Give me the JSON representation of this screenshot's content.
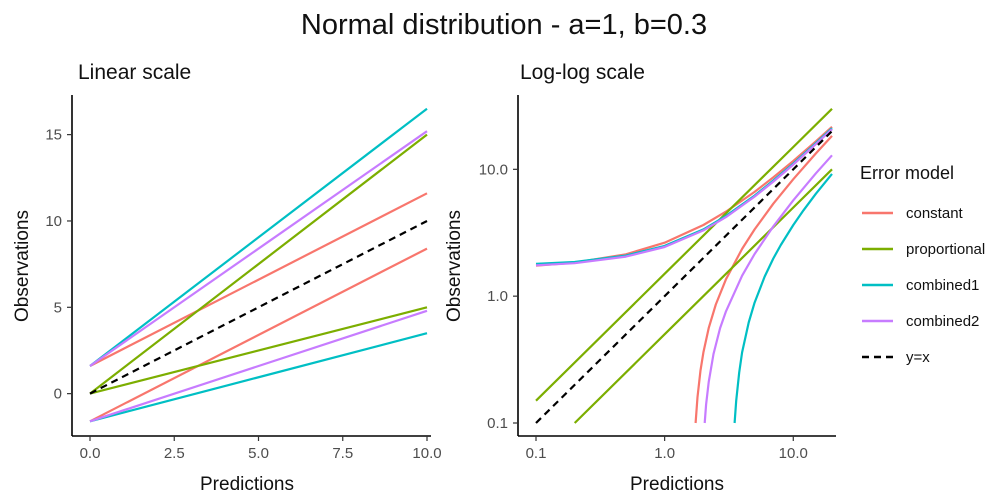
{
  "title": "Normal distribution - a=1, b=0.3",
  "legend": {
    "title": "Error model",
    "placement": "right",
    "items": [
      {
        "label": "constant",
        "color": "#f8766d",
        "dash": false
      },
      {
        "label": "proportional",
        "color": "#7cae00",
        "dash": false
      },
      {
        "label": "combined1",
        "color": "#00bfc4",
        "dash": false
      },
      {
        "label": "combined2",
        "color": "#c77cff",
        "dash": false
      },
      {
        "label": "y=x",
        "color": "#000000",
        "dash": true
      }
    ]
  },
  "chart_data": [
    {
      "type": "line",
      "title": "Linear scale",
      "xlabel": "Predictions",
      "ylabel": "Observations",
      "xlim": [
        0,
        10
      ],
      "ylim": [
        -1.7,
        16.6
      ],
      "xscale": "linear",
      "yscale": "linear",
      "xticks": [
        0,
        2.5,
        5,
        7.5,
        10
      ],
      "xtick_labels": [
        "0.0",
        "2.5",
        "5.0",
        "7.5",
        "10.0"
      ],
      "yticks": [
        0,
        5,
        10,
        15
      ],
      "ytick_labels": [
        "0",
        "5",
        "10",
        "15"
      ],
      "grid": false,
      "series": [
        {
          "group": "constant",
          "x": [
            0,
            10
          ],
          "y": [
            1.6,
            11.6
          ]
        },
        {
          "group": "constant",
          "x": [
            0,
            10
          ],
          "y": [
            -1.6,
            8.4
          ]
        },
        {
          "group": "proportional",
          "x": [
            0,
            10
          ],
          "y": [
            0,
            15
          ]
        },
        {
          "group": "proportional",
          "x": [
            0,
            10
          ],
          "y": [
            0,
            5
          ]
        },
        {
          "group": "combined1",
          "x": [
            0,
            10
          ],
          "y": [
            1.6,
            16.5
          ]
        },
        {
          "group": "combined1",
          "x": [
            0,
            10
          ],
          "y": [
            -1.6,
            3.5
          ]
        },
        {
          "group": "combined2",
          "x": [
            0,
            10
          ],
          "y": [
            1.6,
            15.2
          ]
        },
        {
          "group": "combined2",
          "x": [
            0,
            10
          ],
          "y": [
            -1.6,
            4.8
          ]
        },
        {
          "group": "y=x",
          "x": [
            0,
            10
          ],
          "y": [
            0,
            10
          ]
        }
      ]
    },
    {
      "type": "line",
      "title": "Log-log scale",
      "xlabel": "Predictions",
      "ylabel": "Observations",
      "xlim": [
        0.1,
        20
      ],
      "ylim": [
        0.1,
        31
      ],
      "xscale": "log",
      "yscale": "log",
      "xticks": [
        0.1,
        1,
        10
      ],
      "xtick_labels": [
        "0.1",
        "1.0",
        "10.0"
      ],
      "yticks": [
        0.1,
        1,
        10
      ],
      "ytick_labels": [
        "0.1",
        "1.0",
        "10.0"
      ],
      "grid": false,
      "series": [
        {
          "group": "constant",
          "x": [
            0.1,
            0.2,
            0.5,
            1,
            2,
            3,
            5,
            7,
            10,
            15,
            20
          ],
          "y": [
            1.74,
            1.84,
            2.14,
            2.64,
            3.64,
            4.64,
            6.64,
            8.64,
            11.64,
            16.64,
            21.64
          ]
        },
        {
          "group": "constant",
          "x": [
            1.74,
            1.8,
            1.9,
            2,
            2.2,
            2.5,
            3,
            4,
            5,
            7,
            10,
            15,
            20
          ],
          "y": [
            0.1,
            0.16,
            0.26,
            0.36,
            0.56,
            0.86,
            1.36,
            2.36,
            3.36,
            5.36,
            8.36,
            13.36,
            18.36
          ]
        },
        {
          "group": "proportional",
          "x": [
            0.1,
            1,
            10,
            20
          ],
          "y": [
            0.15,
            1.5,
            15,
            30
          ]
        },
        {
          "group": "proportional",
          "x": [
            0.2,
            1,
            10,
            20
          ],
          "y": [
            0.1,
            0.5,
            5,
            10
          ]
        },
        {
          "group": "combined1",
          "x": [
            0.1,
            0.2,
            0.5,
            1,
            2,
            3,
            5,
            7,
            10,
            15,
            20
          ],
          "y": [
            1.8,
            1.86,
            2.09,
            2.49,
            3.36,
            4.29,
            6.21,
            8.16,
            11.1,
            16.1,
            21.1
          ]
        },
        {
          "group": "combined1",
          "x": [
            3.5,
            3.6,
            3.8,
            4,
            4.5,
            5,
            6,
            7,
            8,
            10,
            12,
            15,
            20
          ],
          "y": [
            0.1,
            0.15,
            0.25,
            0.36,
            0.62,
            0.89,
            1.43,
            1.98,
            2.53,
            3.64,
            4.75,
            6.42,
            9.2
          ]
        },
        {
          "group": "combined2",
          "x": [
            0.1,
            0.2,
            0.5,
            1,
            2,
            3,
            5,
            7,
            10,
            15,
            20
          ],
          "y": [
            1.75,
            1.82,
            2.05,
            2.44,
            3.3,
            4.2,
            6.1,
            8.0,
            10.9,
            15.8,
            20.7
          ]
        },
        {
          "group": "combined2",
          "x": [
            2.05,
            2.1,
            2.2,
            2.4,
            2.7,
            3,
            4,
            5,
            7,
            10,
            15,
            20
          ],
          "y": [
            0.1,
            0.14,
            0.21,
            0.35,
            0.56,
            0.76,
            1.45,
            2.15,
            3.55,
            5.7,
            9.3,
            12.9
          ]
        },
        {
          "group": "y=x",
          "x": [
            0.1,
            20
          ],
          "y": [
            0.1,
            20
          ]
        }
      ]
    }
  ]
}
